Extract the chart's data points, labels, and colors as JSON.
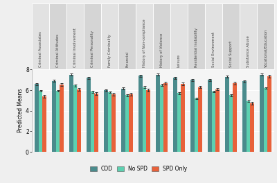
{
  "categories": [
    "Criminal Associates",
    "Criminal Attitudes",
    "Criminal Involvement",
    "Criminal Personality",
    "Family Criminality",
    "Financial",
    "History of Non-compliance",
    "History of Violence",
    "Leisure",
    "Residential Instability",
    "Social Environment",
    "Social Support",
    "Substance Abuse",
    "Vocational/Education"
  ],
  "COD": [
    6.6,
    6.9,
    7.5,
    7.2,
    6.0,
    6.15,
    7.4,
    7.5,
    7.2,
    7.0,
    7.0,
    7.3,
    6.85,
    7.5
  ],
  "No_SPD": [
    5.95,
    5.95,
    6.45,
    5.85,
    5.8,
    5.5,
    6.3,
    6.5,
    5.7,
    5.2,
    5.85,
    5.5,
    4.95,
    6.2
  ],
  "SPD_Only": [
    5.4,
    6.55,
    6.05,
    5.65,
    5.6,
    5.6,
    6.0,
    6.65,
    6.6,
    6.3,
    6.1,
    6.65,
    4.75,
    7.35
  ],
  "COD_err": [
    0.1,
    0.1,
    0.09,
    0.09,
    0.1,
    0.1,
    0.1,
    0.09,
    0.1,
    0.1,
    0.1,
    0.09,
    0.1,
    0.09
  ],
  "No_SPD_err": [
    0.08,
    0.08,
    0.09,
    0.09,
    0.08,
    0.08,
    0.09,
    0.09,
    0.08,
    0.09,
    0.08,
    0.09,
    0.09,
    0.08
  ],
  "SPD_Only_err": [
    0.12,
    0.12,
    0.13,
    0.12,
    0.12,
    0.12,
    0.13,
    0.13,
    0.13,
    0.13,
    0.12,
    0.13,
    0.13,
    0.13
  ],
  "color_COD": "#4a8b8c",
  "color_No_SPD": "#5dd0b0",
  "color_SPD_Only": "#e8613a",
  "ylim": [
    0,
    8
  ],
  "yticks": [
    0,
    2,
    4,
    6,
    8
  ],
  "ylabel": "Predicted Means",
  "bg_color": "#efefef",
  "panel_bg": "#f5f5f5",
  "label_bg_odd": "#e2e2e2",
  "label_bg_even": "#d5d5d5",
  "bar_width": 0.22
}
